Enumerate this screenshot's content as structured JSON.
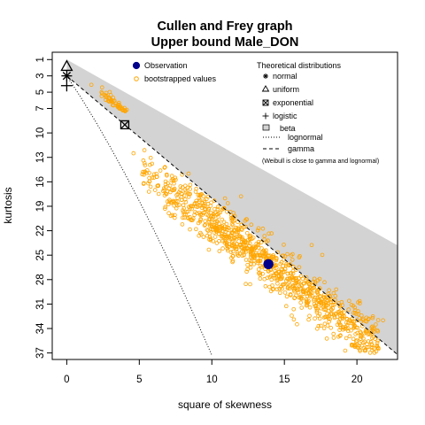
{
  "chart_data": {
    "type": "scatter",
    "title": "Cullen and Frey graph",
    "subtitle": "Upper bound  Male_DON",
    "xlabel": "square of skewness",
    "ylabel": "kurtosis",
    "xlim": [
      -1,
      22.8
    ],
    "ylim": [
      37.8,
      0.1
    ],
    "x_ticks": [
      0,
      5,
      10,
      15,
      20
    ],
    "y_ticks": [
      1,
      3,
      5,
      7,
      10,
      13,
      16,
      19,
      22,
      25,
      28,
      31,
      34,
      37
    ],
    "grid": false,
    "legend_left": {
      "placement": "top-center",
      "items": [
        {
          "label": "Observation",
          "symbol": "filled-circle",
          "color": "#00008b"
        },
        {
          "label": "bootstrapped values",
          "symbol": "open-circle",
          "color": "#ffa500"
        }
      ]
    },
    "legend_right": {
      "placement": "top-right",
      "title": "Theoretical distributions",
      "items": [
        {
          "label": "normal",
          "symbol": "asterisk"
        },
        {
          "label": "uniform",
          "symbol": "triangle"
        },
        {
          "label": "exponential",
          "symbol": "boxed-x"
        },
        {
          "label": "logistic",
          "symbol": "plus"
        },
        {
          "label": "beta",
          "symbol": "grey-box"
        },
        {
          "label": "lognormal",
          "symbol": "dotted-line"
        },
        {
          "label": "gamma",
          "symbol": "dashed-line"
        }
      ],
      "note": "(Weibull is close to gamma and lognormal)"
    },
    "theoretical_points": [
      {
        "name": "normal",
        "x": 0,
        "y": 3
      },
      {
        "name": "uniform",
        "x": 0,
        "y": 1.8
      },
      {
        "name": "exponential",
        "x": 4,
        "y": 9
      },
      {
        "name": "logistic",
        "x": 0,
        "y": 4.2
      }
    ],
    "beta_region": {
      "upper_line": {
        "description": "kurtosis = skewness^2 + 1",
        "points": [
          [
            0,
            1
          ],
          [
            22.8,
            23.8
          ]
        ]
      },
      "lower_line": {
        "description": "gamma line kurtosis = 1.5*skewness^2 + 3",
        "points": [
          [
            0,
            3
          ],
          [
            22.8,
            37.2
          ]
        ]
      },
      "color": "#d3d3d3"
    },
    "gamma_line": {
      "style": "dashed",
      "points": [
        [
          0,
          3
        ],
        [
          22.8,
          37.2
        ]
      ]
    },
    "lognormal_line": {
      "style": "dotted",
      "points": [
        [
          0,
          3
        ],
        [
          0.5,
          4.35
        ],
        [
          1,
          5.73
        ],
        [
          2,
          8.64
        ],
        [
          3,
          11.72
        ],
        [
          4,
          14.96
        ],
        [
          5,
          18.35
        ],
        [
          6,
          21.88
        ],
        [
          7,
          25.55
        ],
        [
          8,
          29.34
        ],
        [
          9,
          33.26
        ],
        [
          10,
          37.28
        ]
      ]
    },
    "observation": {
      "x": 13.9,
      "y": 26.1,
      "color": "#00008b"
    },
    "bootstrap": {
      "color": "#ffa500",
      "description": "approx. 1000 bootstrapped (skewness^2, kurtosis) pairs",
      "x_range": [
        1.7,
        21.8
      ],
      "y_range": [
        4.0,
        36.6
      ],
      "sample_points": [
        [
          1.7,
          4.1
        ],
        [
          2.4,
          5.0
        ],
        [
          2.7,
          5.6
        ],
        [
          3.1,
          6.0
        ],
        [
          3.4,
          6.4
        ],
        [
          4.6,
          12.5
        ],
        [
          6.0,
          15.5
        ],
        [
          8.0,
          19.5
        ],
        [
          10.0,
          21.5
        ],
        [
          12.0,
          24.0
        ],
        [
          13.9,
          26.1
        ],
        [
          15.0,
          27.0
        ],
        [
          17.0,
          29.0
        ],
        [
          18.5,
          30.5
        ],
        [
          20.0,
          33.0
        ],
        [
          21.2,
          34.0
        ],
        [
          21.8,
          33.0
        ],
        [
          20.2,
          36.6
        ]
      ]
    }
  }
}
